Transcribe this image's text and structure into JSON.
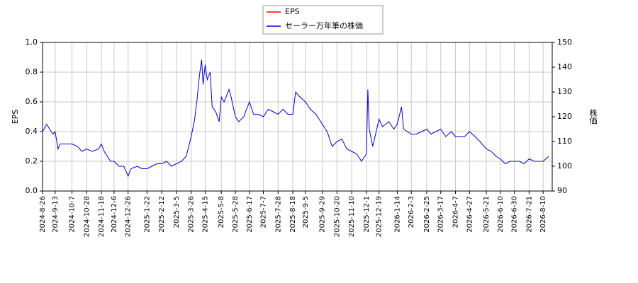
{
  "chart_data": {
    "type": "line",
    "ylabel": "EPS",
    "y2label": "株価",
    "x": [
      "2024-8-26",
      "2024-9-1",
      "2024-9-5",
      "2024-9-10",
      "2024-9-13",
      "2024-9-17",
      "2024-9-20",
      "2024-10-1",
      "2024-10-7",
      "2024-10-15",
      "2024-10-21",
      "2024-10-28",
      "2024-11-5",
      "2024-11-14",
      "2024-11-18",
      "2024-11-22",
      "2024-12-1",
      "2024-12-6",
      "2024-12-13",
      "2024-12-20",
      "2024-12-26",
      "2024-12-30",
      "2025-1-8",
      "2025-1-15",
      "2025-1-22",
      "2025-1-29",
      "2025-2-5",
      "2025-2-12",
      "2025-2-19",
      "2025-2-26",
      "2025-3-5",
      "2025-3-12",
      "2025-3-19",
      "2025-3-26",
      "2025-3-31",
      "2025-4-3",
      "2025-4-7",
      "2025-4-10",
      "2025-4-12",
      "2025-4-15",
      "2025-4-18",
      "2025-4-22",
      "2025-4-25",
      "2025-4-30",
      "2025-5-5",
      "2025-5-8",
      "2025-5-12",
      "2025-5-19",
      "2025-5-22",
      "2025-5-28",
      "2025-6-2",
      "2025-6-9",
      "2025-6-17",
      "2025-6-23",
      "2025-6-30",
      "2025-7-7",
      "2025-7-14",
      "2025-7-21",
      "2025-7-28",
      "2025-8-4",
      "2025-8-11",
      "2025-8-18",
      "2025-8-22",
      "2025-8-28",
      "2025-9-5",
      "2025-9-12",
      "2025-9-20",
      "2025-9-29",
      "2025-10-6",
      "2025-10-13",
      "2025-10-20",
      "2025-10-27",
      "2025-11-3",
      "2025-11-10",
      "2025-11-17",
      "2025-11-24",
      "2025-12-1",
      "2025-12-3",
      "2025-12-5",
      "2025-12-10",
      "2025-12-19",
      "2025-12-24",
      "2026-1-2",
      "2026-1-9",
      "2026-1-14",
      "2026-1-20",
      "2026-1-23",
      "2026-2-3",
      "2026-2-10",
      "2026-2-18",
      "2026-2-25",
      "2026-3-3",
      "2026-3-10",
      "2026-3-17",
      "2026-3-24",
      "2026-4-1",
      "2026-4-7",
      "2026-4-14",
      "2026-4-20",
      "2026-4-27",
      "2026-5-5",
      "2026-5-12",
      "2026-5-21",
      "2026-5-28",
      "2026-6-4",
      "2026-6-10",
      "2026-6-17",
      "2026-6-24",
      "2026-6-30",
      "2026-7-7",
      "2026-7-14",
      "2026-7-21",
      "2026-7-28",
      "2026-8-4",
      "2026-8-10",
      "2026-8-18"
    ],
    "series": [
      {
        "name": "EPS",
        "color": "#ff0000",
        "values": [
          null,
          null,
          null,
          null,
          null,
          null,
          null,
          null,
          null,
          null,
          null,
          null,
          null,
          null,
          null,
          null,
          null,
          null,
          null,
          null,
          null,
          null,
          null,
          null,
          null,
          null,
          null,
          null,
          null,
          null,
          null,
          null,
          null,
          null,
          null,
          null,
          null,
          null,
          null,
          null,
          null,
          null,
          null,
          null,
          null,
          null,
          null,
          null,
          null,
          null,
          null,
          null,
          null,
          null,
          null,
          null,
          null,
          null,
          null,
          null,
          null,
          null,
          null,
          null,
          null,
          null,
          null,
          null,
          null,
          null,
          null,
          null,
          null,
          null,
          null,
          null,
          null,
          null,
          null,
          null,
          null,
          null,
          null,
          null,
          null,
          null,
          null,
          null,
          null,
          null,
          null,
          null,
          null,
          null,
          null,
          null,
          null,
          null,
          null,
          null,
          null,
          null,
          null,
          null,
          null,
          null,
          null,
          null,
          null,
          null,
          null,
          null,
          null,
          null,
          null,
          null
        ]
      },
      {
        "name": "セーラー万年筆の株価",
        "color": "#0000cc",
        "axis": "y2",
        "values": [
          114,
          117,
          115,
          113,
          114,
          107,
          109,
          109,
          109,
          108,
          106,
          107,
          106,
          107,
          109,
          106,
          102,
          102,
          100,
          100,
          96,
          99,
          100,
          99,
          99,
          100,
          101,
          101,
          102,
          100,
          101,
          102,
          104,
          112,
          119,
          126,
          137,
          143,
          133,
          141,
          135,
          138,
          124,
          122,
          118,
          128,
          126,
          131,
          128,
          120,
          118,
          120,
          126,
          121,
          121,
          120,
          123,
          122,
          121,
          123,
          121,
          121,
          130,
          128,
          126,
          123,
          121,
          117,
          114,
          108,
          110,
          111,
          107,
          106,
          105,
          102,
          105,
          131,
          115,
          108,
          119,
          116,
          118,
          115,
          117,
          124,
          115,
          113,
          113,
          114,
          115,
          113,
          114,
          115,
          112,
          114,
          112,
          112,
          112,
          114,
          112,
          110,
          107,
          106,
          104,
          103,
          101,
          102,
          102,
          102,
          101,
          103,
          102,
          102,
          102,
          104
        ]
      }
    ],
    "xlim": [
      "2024-8-26",
      "2026-8-23"
    ],
    "xticks": [
      "2024-8-26",
      "2024-9-13",
      "2024-10-7",
      "2024-10-28",
      "2024-11-18",
      "2024-12-6",
      "2024-12-26",
      "2025-1-22",
      "2025-2-12",
      "2025-3-5",
      "2025-3-26",
      "2025-4-15",
      "2025-5-8",
      "2025-5-28",
      "2025-6-17",
      "2025-7-7",
      "2025-7-28",
      "2025-8-18",
      "2025-9-5",
      "2025-9-29",
      "2025-10-20",
      "2025-11-10",
      "2025-12-1",
      "2025-12-19",
      "2026-1-14",
      "2026-2-3",
      "2026-2-25",
      "2026-3-17",
      "2026-4-7",
      "2026-4-27",
      "2026-5-21",
      "2026-6-10",
      "2026-6-30",
      "2026-7-21",
      "2026-8-10"
    ],
    "ylim": [
      0,
      1
    ],
    "yticks": [
      {
        "value": 0,
        "label": "0.0"
      },
      {
        "value": 0.2,
        "label": "0.2"
      },
      {
        "value": 0.4,
        "label": "0.4"
      },
      {
        "value": 0.6,
        "label": "0.6"
      },
      {
        "value": 0.8,
        "label": "0.8"
      },
      {
        "value": 1,
        "label": "1.0"
      }
    ],
    "y2lim": [
      90,
      150
    ],
    "y2ticks": [
      90,
      100,
      110,
      120,
      130,
      140,
      150
    ],
    "grid": true,
    "legend": "top"
  }
}
